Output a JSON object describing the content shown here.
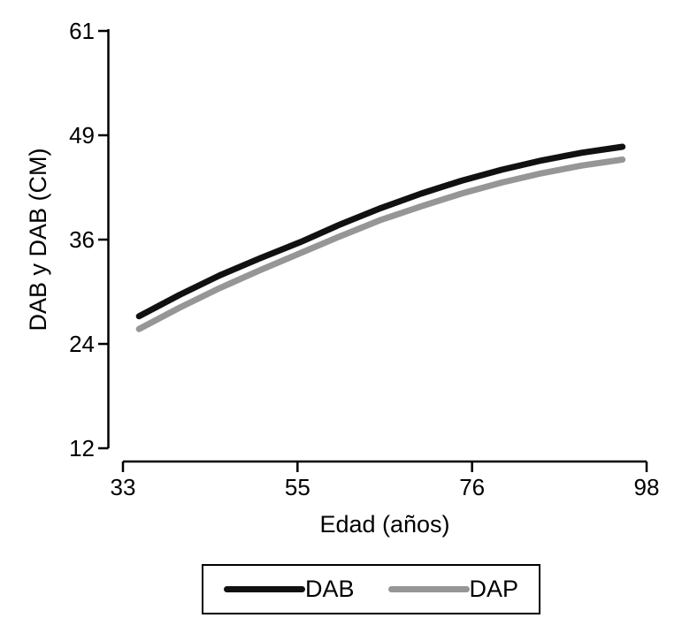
{
  "chart_data": {
    "type": "line",
    "title": "",
    "xlabel": "Edad (años)",
    "ylabel": "DAB y DAB (CM)",
    "xlim": [
      33,
      98
    ],
    "ylim": [
      12,
      61
    ],
    "x_ticks": [
      33,
      55,
      76,
      98
    ],
    "y_ticks": [
      12,
      24,
      36,
      49,
      61
    ],
    "grid": false,
    "legend_position": "bottom-center-boxed",
    "x": [
      35,
      40,
      45,
      50,
      55,
      60,
      65,
      70,
      75,
      80,
      85,
      90,
      95
    ],
    "series": [
      {
        "name": "DAB",
        "color": "#111111",
        "values": [
          27.5,
          30.0,
          32.3,
          34.3,
          36.2,
          38.3,
          40.2,
          41.9,
          43.4,
          44.7,
          45.8,
          46.7,
          47.4
        ]
      },
      {
        "name": "DAP",
        "color": "#969696",
        "values": [
          26.0,
          28.5,
          30.8,
          32.9,
          34.9,
          36.9,
          38.8,
          40.4,
          41.9,
          43.2,
          44.3,
          45.2,
          45.9
        ]
      }
    ]
  }
}
